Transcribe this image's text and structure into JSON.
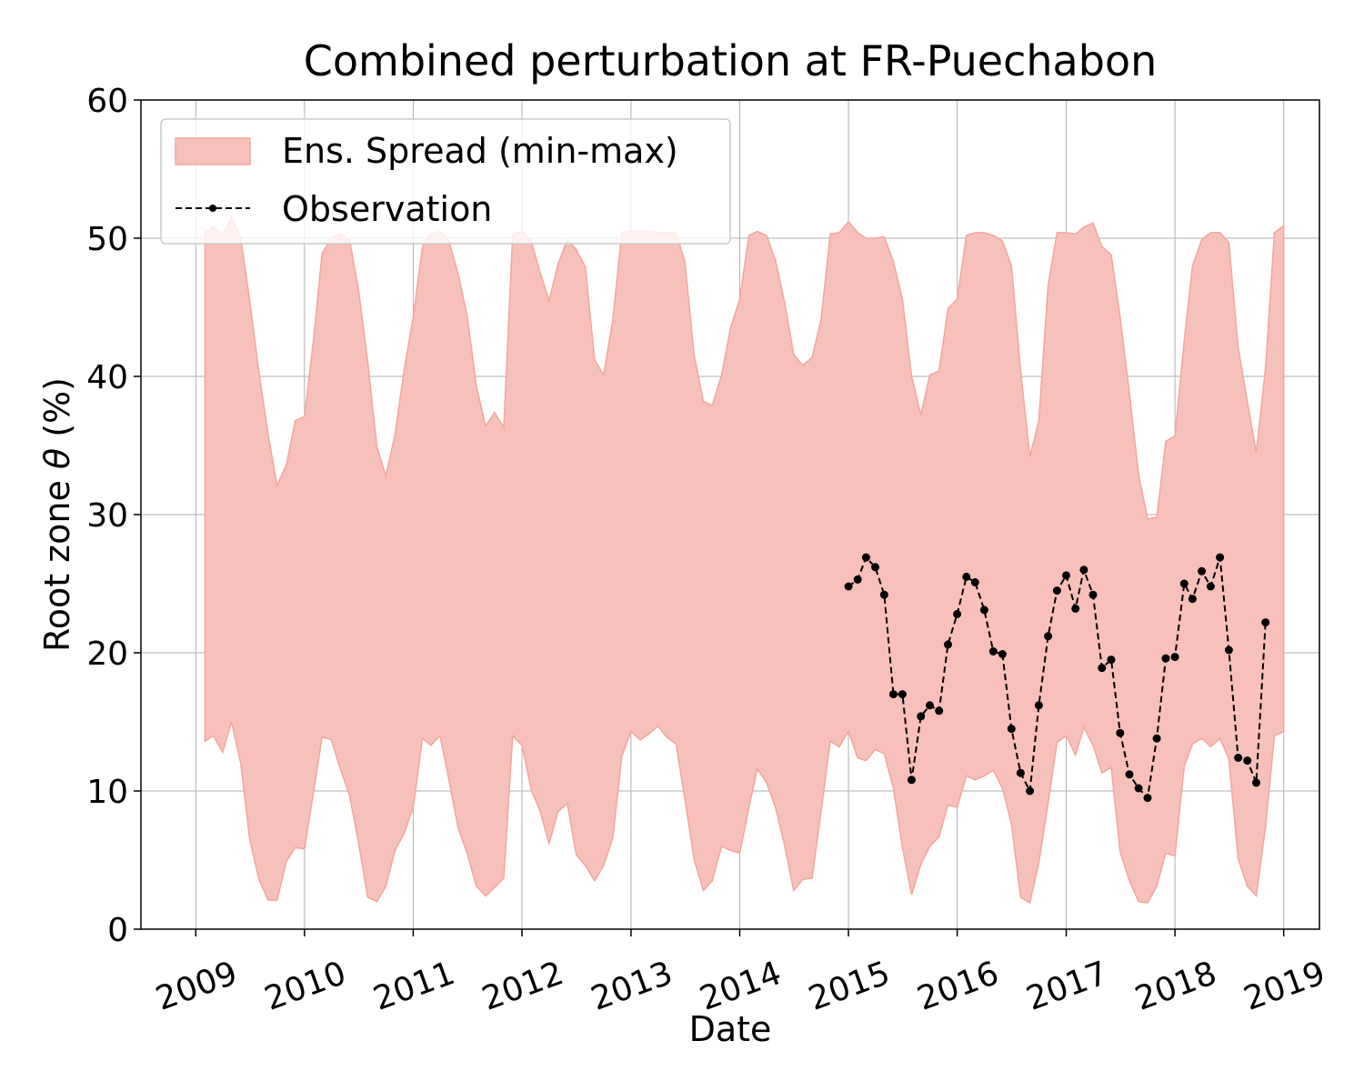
{
  "chart_data": {
    "type": "area",
    "title": "Combined perturbation at FR-Puechabon",
    "xlabel": "Date",
    "ylabel_prefix": "Root zone ",
    "ylabel_symbol": "θ",
    "ylabel_suffix": "  (%)",
    "xlim": [
      "2008-07-01",
      "2019-05-01"
    ],
    "ylim": [
      0,
      60
    ],
    "x_ticks": [
      "2009",
      "2010",
      "2011",
      "2012",
      "2013",
      "2014",
      "2015",
      "2016",
      "2017",
      "2018",
      "2019"
    ],
    "y_ticks": [
      "0",
      "10",
      "20",
      "30",
      "40",
      "50",
      "60"
    ],
    "grid": true,
    "legend": {
      "position": "top-left",
      "entries": [
        "Ens. Spread (min-max)",
        "Observation"
      ]
    },
    "colors": {
      "spread_fill": "#f8c0ba",
      "spread_edge": "#f2a79d",
      "observation": "#000000",
      "grid": "#b0b0b0"
    },
    "series": [
      {
        "name": "Ens. Spread (min-max)",
        "kind": "band",
        "x": [
          "2009-02-01",
          "2009-03-01",
          "2009-04-01",
          "2009-05-01",
          "2009-06-01",
          "2009-07-01",
          "2009-08-01",
          "2009-09-01",
          "2009-10-01",
          "2009-11-01",
          "2009-12-01",
          "2010-01-01",
          "2010-02-01",
          "2010-03-01",
          "2010-04-01",
          "2010-05-01",
          "2010-06-01",
          "2010-07-01",
          "2010-08-01",
          "2010-09-01",
          "2010-10-01",
          "2010-11-01",
          "2010-12-01",
          "2011-01-01",
          "2011-02-01",
          "2011-03-01",
          "2011-04-01",
          "2011-05-01",
          "2011-06-01",
          "2011-07-01",
          "2011-08-01",
          "2011-09-01",
          "2011-10-01",
          "2011-11-01",
          "2011-12-01",
          "2012-01-01",
          "2012-02-01",
          "2012-03-01",
          "2012-04-01",
          "2012-05-01",
          "2012-06-01",
          "2012-07-01",
          "2012-08-01",
          "2012-09-01",
          "2012-10-01",
          "2012-11-01",
          "2012-12-01",
          "2013-01-01",
          "2013-02-01",
          "2013-03-01",
          "2013-04-01",
          "2013-05-01",
          "2013-06-01",
          "2013-07-01",
          "2013-08-01",
          "2013-09-01",
          "2013-10-01",
          "2013-11-01",
          "2013-12-01",
          "2014-01-01",
          "2014-02-01",
          "2014-03-01",
          "2014-04-01",
          "2014-05-01",
          "2014-06-01",
          "2014-07-01",
          "2014-08-01",
          "2014-09-01",
          "2014-10-01",
          "2014-11-01",
          "2014-12-01",
          "2015-01-01",
          "2015-02-01",
          "2015-03-01",
          "2015-04-01",
          "2015-05-01",
          "2015-06-01",
          "2015-07-01",
          "2015-08-01",
          "2015-09-01",
          "2015-10-01",
          "2015-11-01",
          "2015-12-01",
          "2016-01-01",
          "2016-02-01",
          "2016-03-01",
          "2016-04-01",
          "2016-05-01",
          "2016-06-01",
          "2016-07-01",
          "2016-08-01",
          "2016-09-01",
          "2016-10-01",
          "2016-11-01",
          "2016-12-01",
          "2017-01-01",
          "2017-02-01",
          "2017-03-01",
          "2017-04-01",
          "2017-05-01",
          "2017-06-01",
          "2017-07-01",
          "2017-08-01",
          "2017-09-01",
          "2017-10-01",
          "2017-11-01",
          "2017-12-01",
          "2018-01-01",
          "2018-02-01",
          "2018-03-01",
          "2018-04-01",
          "2018-05-01",
          "2018-06-01",
          "2018-07-01",
          "2018-08-01",
          "2018-09-01",
          "2018-10-01",
          "2018-11-01",
          "2018-12-01",
          "2019-01-01"
        ],
        "upper": [
          50.4,
          50.8,
          50.2,
          51.5,
          50.0,
          45.5,
          40.3,
          35.8,
          32.1,
          33.6,
          36.8,
          37.1,
          42.8,
          48.9,
          50.0,
          50.3,
          49.9,
          46.3,
          41.1,
          34.9,
          32.8,
          35.8,
          40.4,
          44.3,
          49.4,
          50.3,
          50.5,
          49.8,
          47.4,
          44.4,
          39.3,
          36.4,
          37.4,
          36.3,
          50.3,
          50.5,
          49.8,
          47.6,
          45.5,
          48.1,
          49.9,
          49.2,
          47.9,
          41.2,
          40.1,
          44.1,
          50.4,
          50.5,
          50.5,
          50.5,
          50.4,
          50.4,
          50.4,
          48.3,
          41.5,
          38.2,
          37.9,
          40.1,
          43.5,
          45.6,
          50.2,
          50.5,
          50.2,
          48.4,
          45.3,
          41.6,
          40.8,
          41.4,
          44.1,
          50.3,
          50.4,
          51.2,
          50.4,
          50.0,
          50.0,
          50.1,
          48.3,
          45.6,
          40.0,
          37.2,
          40.1,
          40.4,
          44.9,
          45.6,
          50.2,
          50.4,
          50.4,
          50.2,
          49.8,
          48.0,
          40.4,
          34.2,
          36.8,
          46.6,
          50.4,
          50.4,
          50.3,
          50.8,
          51.1,
          49.4,
          48.8,
          44.3,
          38.8,
          32.9,
          29.7,
          29.8,
          35.3,
          35.7,
          42.6,
          48.0,
          49.9,
          50.4,
          50.4,
          49.7,
          42.1,
          38.2,
          34.5,
          40.6,
          50.4,
          50.9
        ],
        "lower": [
          13.6,
          14.0,
          12.8,
          15.0,
          12.0,
          6.5,
          3.6,
          2.1,
          2.1,
          4.9,
          5.9,
          5.8,
          10.0,
          13.9,
          13.7,
          11.6,
          9.7,
          6.3,
          2.3,
          2.0,
          3.1,
          5.7,
          6.9,
          8.8,
          13.8,
          13.3,
          14.0,
          10.8,
          7.3,
          5.5,
          3.1,
          2.4,
          3.0,
          3.7,
          14.0,
          13.3,
          10.1,
          8.6,
          6.2,
          8.5,
          9.1,
          5.4,
          4.6,
          3.5,
          4.6,
          6.6,
          12.5,
          14.3,
          13.7,
          14.1,
          14.7,
          13.9,
          13.4,
          9.4,
          5.0,
          2.8,
          3.5,
          6.0,
          5.7,
          5.5,
          8.8,
          11.6,
          10.6,
          8.8,
          6.0,
          2.8,
          3.6,
          3.7,
          8.5,
          13.6,
          13.2,
          14.3,
          12.4,
          12.2,
          13.0,
          12.7,
          10.2,
          5.9,
          2.5,
          4.7,
          6.0,
          6.7,
          9.0,
          8.8,
          11.1,
          10.8,
          11.1,
          11.5,
          10.2,
          7.6,
          2.3,
          1.9,
          4.8,
          9.1,
          13.5,
          14.0,
          12.6,
          14.6,
          13.3,
          11.3,
          11.7,
          5.6,
          3.5,
          2.0,
          1.9,
          3.1,
          5.5,
          5.3,
          11.8,
          13.4,
          13.8,
          13.2,
          13.8,
          12.3,
          5.1,
          3.1,
          2.4,
          7.4,
          14.0,
          14.3
        ]
      },
      {
        "name": "Observation",
        "kind": "line-markers",
        "x": [
          "2015-01-01",
          "2015-02-01",
          "2015-03-01",
          "2015-04-01",
          "2015-05-01",
          "2015-06-01",
          "2015-07-01",
          "2015-08-01",
          "2015-09-01",
          "2015-10-01",
          "2015-11-01",
          "2015-12-01",
          "2016-01-01",
          "2016-02-01",
          "2016-03-01",
          "2016-04-01",
          "2016-05-01",
          "2016-06-01",
          "2016-07-01",
          "2016-08-01",
          "2016-09-01",
          "2016-10-01",
          "2016-11-01",
          "2016-12-01",
          "2017-01-01",
          "2017-02-01",
          "2017-03-01",
          "2017-04-01",
          "2017-05-01",
          "2017-06-01",
          "2017-07-01",
          "2017-08-01",
          "2017-09-01",
          "2017-10-01",
          "2017-11-01",
          "2017-12-01",
          "2018-01-01",
          "2018-02-01",
          "2018-03-01",
          "2018-04-01",
          "2018-05-01",
          "2018-06-01",
          "2018-07-01",
          "2018-08-01",
          "2018-09-01",
          "2018-10-01",
          "2018-11-01"
        ],
        "values": [
          24.8,
          25.3,
          26.9,
          26.2,
          24.2,
          17.0,
          17.0,
          10.8,
          15.4,
          16.2,
          15.8,
          20.6,
          22.8,
          25.5,
          25.1,
          23.1,
          20.1,
          19.9,
          14.5,
          11.3,
          10.0,
          16.2,
          21.2,
          24.5,
          25.6,
          23.2,
          26.0,
          24.2,
          18.9,
          19.5,
          14.2,
          11.2,
          10.2,
          9.5,
          13.8,
          19.6,
          19.7,
          25.0,
          23.9,
          25.9,
          24.8,
          26.9,
          20.2,
          12.4,
          12.2,
          10.6,
          22.2
        ]
      }
    ]
  }
}
